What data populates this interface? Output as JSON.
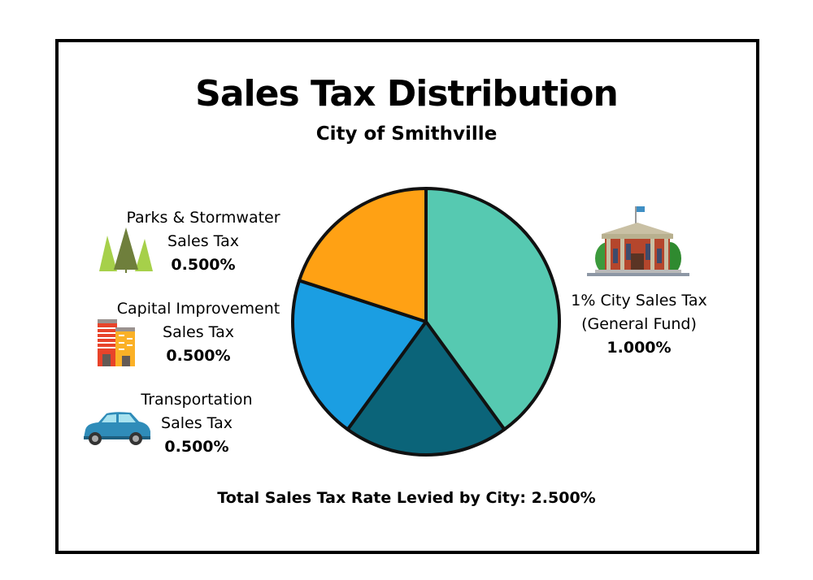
{
  "title": "Sales Tax Distribution",
  "subtitle": "City of Smithville",
  "labels": [
    {
      "line1": "Parks & Stormwater",
      "line2": "Sales Tax",
      "value": "0.500%",
      "icon": "trees-icon"
    },
    {
      "line1": "Capital Improvement",
      "line2": "Sales Tax",
      "value": "0.500%",
      "icon": "buildings-icon"
    },
    {
      "line1": "Transportation",
      "line2": "Sales Tax",
      "value": "0.500%",
      "icon": "car-icon"
    },
    {
      "line1": "1% City Sales Tax",
      "line2": "(General Fund)",
      "value": "1.000%",
      "icon": "city-hall-icon"
    }
  ],
  "total": "Total Sales Tax Rate Levied by City: 2.500%",
  "chart_data": {
    "type": "pie",
    "title": "Sales Tax Distribution",
    "subtitle": "City of Smithville",
    "slices": [
      {
        "label": "1% City Sales Tax (General Fund)",
        "value": 1.0,
        "color": "#56c9b1"
      },
      {
        "label": "Transportation Sales Tax",
        "value": 0.5,
        "color": "#0b6479"
      },
      {
        "label": "Capital Improvement Sales Tax",
        "value": 0.5,
        "color": "#1b9ee2"
      },
      {
        "label": "Parks & Stormwater Sales Tax",
        "value": 0.5,
        "color": "#ffa114"
      }
    ],
    "start": "top",
    "direction": "clockwise",
    "total": 2.5
  }
}
